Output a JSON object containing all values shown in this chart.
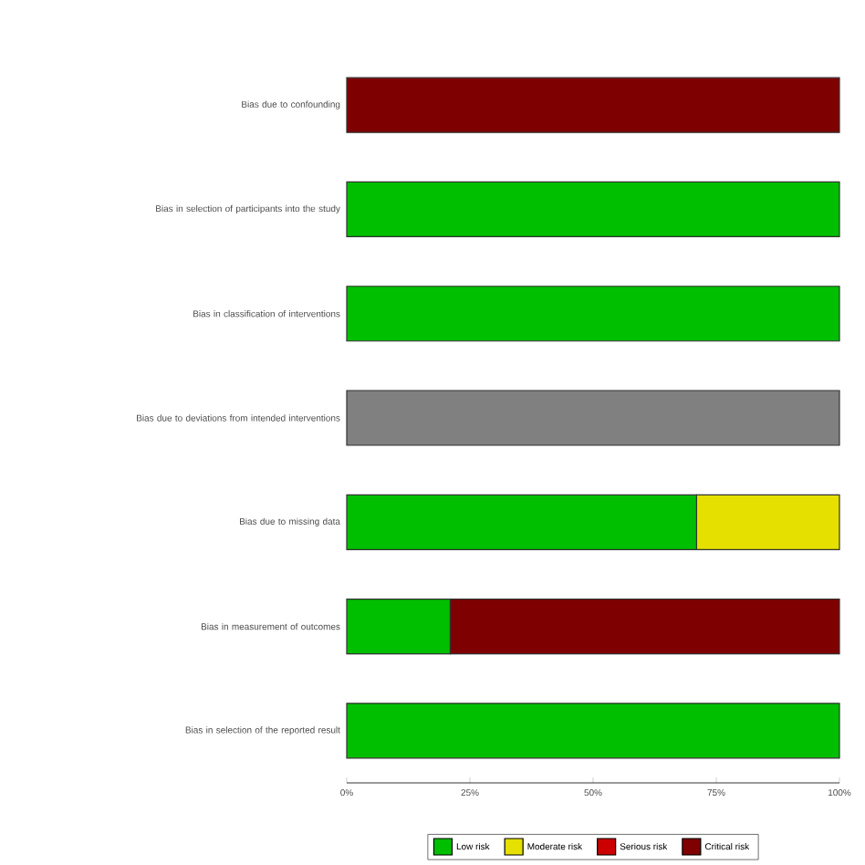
{
  "chart_data": {
    "type": "bar",
    "orientation": "horizontal",
    "stacked": true,
    "categories": [
      "Bias due to confounding",
      "Bias in selection of participants into the study",
      "Bias in classification of interventions",
      "Bias due to deviations from intended interventions",
      "Bias due to missing data",
      "Bias in measurement of outcomes",
      "Bias in selection of the reported result"
    ],
    "series": [
      {
        "name": "Low risk",
        "color": "#00bf00",
        "values": [
          null,
          100,
          100,
          null,
          71,
          21,
          100
        ]
      },
      {
        "name": "Moderate risk",
        "color": "#e5e000",
        "values": [
          null,
          null,
          null,
          null,
          29,
          null,
          null
        ]
      },
      {
        "name": "Serious risk",
        "color": "#cc0000",
        "values": [
          null,
          null,
          null,
          null,
          null,
          null,
          null
        ]
      },
      {
        "name": "Critical risk",
        "color": "#7f0000",
        "values": [
          100,
          null,
          null,
          null,
          null,
          79,
          null
        ]
      },
      {
        "color": "#808080",
        "values": [
          null,
          null,
          null,
          100,
          null,
          null,
          null
        ]
      }
    ],
    "xlim": [
      0,
      100
    ],
    "xticks": [
      {
        "value": 0,
        "label": "0%"
      },
      {
        "value": 25,
        "label": "25%"
      },
      {
        "value": 50,
        "label": "50%"
      },
      {
        "value": 75,
        "label": "75%"
      },
      {
        "value": 100,
        "label": "100%"
      }
    ],
    "legend": "bottom",
    "grid": false
  }
}
